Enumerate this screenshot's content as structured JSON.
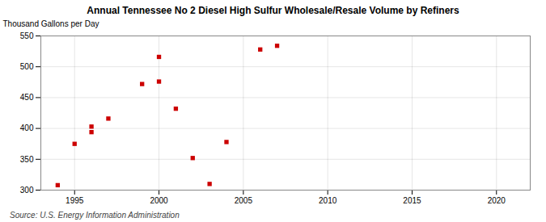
{
  "chart_data": {
    "type": "scatter",
    "title": "Annual Tennessee No 2 Diesel High Sulfur Wholesale/Resale Volume by Refiners",
    "ylabel": "Thousand Gallons per Day",
    "source": "Source: U.S. Energy Information Administration",
    "x": [
      1994,
      1995,
      1996,
      1996,
      1997,
      1999,
      2000,
      2000,
      2001,
      2002,
      2003,
      2004,
      2006,
      2007
    ],
    "values": [
      308,
      375,
      394,
      403,
      416,
      472,
      476,
      516,
      432,
      352,
      310,
      378,
      528,
      534
    ],
    "color": "#cc0000",
    "marker": "square",
    "xlim": [
      1993,
      2022
    ],
    "ylim": [
      300,
      550
    ],
    "xticks": [
      1995,
      2000,
      2005,
      2010,
      2015,
      2020
    ],
    "yticks": [
      300,
      350,
      400,
      450,
      500,
      550
    ],
    "grid": true
  }
}
